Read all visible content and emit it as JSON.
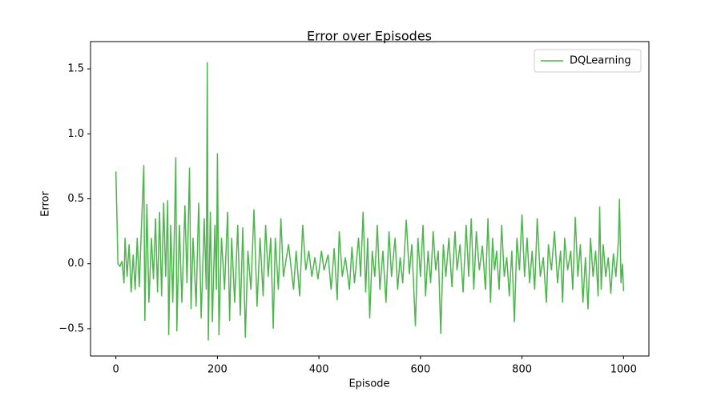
{
  "chart_data": {
    "type": "line",
    "title": "Error over Episodes",
    "xlabel": "Episode",
    "ylabel": "Error",
    "x": [
      0,
      4,
      8,
      12,
      16,
      18,
      22,
      26,
      30,
      34,
      38,
      42,
      46,
      50,
      55,
      57,
      61,
      65,
      70,
      74,
      78,
      82,
      86,
      90,
      94,
      98,
      102,
      104,
      108,
      112,
      116,
      118,
      120,
      125,
      130,
      136,
      140,
      145,
      148,
      152,
      158,
      163,
      168,
      174,
      178,
      180,
      182,
      186,
      190,
      195,
      198,
      200,
      203,
      208,
      214,
      220,
      224,
      228,
      234,
      240,
      245,
      250,
      255,
      260,
      266,
      272,
      278,
      284,
      290,
      295,
      300,
      305,
      310,
      314,
      320,
      325,
      330,
      340,
      350,
      355,
      362,
      368,
      374,
      380,
      386,
      392,
      398,
      405,
      410,
      418,
      424,
      430,
      436,
      440,
      446,
      452,
      460,
      465,
      470,
      478,
      482,
      487,
      492,
      496,
      500,
      505,
      510,
      515,
      520,
      526,
      532,
      538,
      543,
      550,
      555,
      560,
      565,
      572,
      578,
      583,
      590,
      595,
      600,
      605,
      610,
      615,
      620,
      625,
      630,
      635,
      640,
      645,
      650,
      656,
      662,
      668,
      672,
      678,
      684,
      690,
      695,
      700,
      705,
      710,
      716,
      722,
      728,
      733,
      738,
      742,
      746,
      750,
      755,
      760,
      765,
      770,
      775,
      780,
      785,
      790,
      795,
      800,
      805,
      810,
      815,
      820,
      825,
      830,
      836,
      842,
      848,
      852,
      858,
      864,
      870,
      876,
      880,
      884,
      890,
      896,
      900,
      905,
      910,
      915,
      920,
      925,
      930,
      935,
      940,
      945,
      950,
      953,
      956,
      960,
      965,
      970,
      975,
      980,
      985,
      990,
      992,
      995,
      998,
      1000
    ],
    "series": [
      {
        "name": "DQLearning",
        "color": "#4cb54c",
        "values": [
          0.71,
          0.0,
          -0.02,
          0.02,
          -0.15,
          0.2,
          -0.1,
          0.15,
          -0.22,
          0.07,
          -0.2,
          0.2,
          -0.18,
          0.25,
          0.76,
          -0.44,
          0.46,
          -0.3,
          0.2,
          -0.12,
          0.35,
          -0.22,
          0.4,
          -0.25,
          0.47,
          -0.1,
          0.49,
          -0.55,
          0.3,
          -0.3,
          0.4,
          0.82,
          -0.52,
          0.3,
          -0.3,
          0.45,
          -0.15,
          0.74,
          -0.35,
          0.2,
          -0.33,
          0.47,
          -0.42,
          0.35,
          -0.2,
          1.55,
          -0.59,
          0.4,
          -0.45,
          0.3,
          -0.2,
          0.85,
          -0.55,
          0.2,
          -0.2,
          0.4,
          -0.44,
          0.2,
          -0.3,
          0.3,
          -0.4,
          0.28,
          -0.57,
          0.1,
          -0.2,
          0.42,
          -0.33,
          0.2,
          -0.25,
          0.3,
          -0.1,
          0.2,
          -0.5,
          0.2,
          -0.2,
          0.35,
          -0.1,
          0.15,
          -0.2,
          0.1,
          -0.25,
          0.3,
          -0.05,
          0.1,
          -0.1,
          0.05,
          -0.12,
          0.1,
          -0.05,
          0.07,
          -0.2,
          0.12,
          -0.28,
          0.25,
          -0.1,
          0.05,
          -0.2,
          0.13,
          -0.15,
          0.2,
          -0.1,
          0.4,
          -0.22,
          0.2,
          -0.42,
          0.1,
          -0.1,
          0.3,
          -0.2,
          0.1,
          -0.3,
          0.25,
          -0.1,
          0.2,
          -0.2,
          0.05,
          -0.15,
          0.34,
          -0.08,
          0.15,
          -0.48,
          0.2,
          -0.1,
          0.3,
          -0.25,
          0.1,
          -0.15,
          0.25,
          -0.05,
          0.1,
          -0.54,
          0.15,
          -0.1,
          0.2,
          -0.18,
          0.25,
          -0.05,
          0.15,
          -0.22,
          0.3,
          -0.1,
          0.35,
          -0.2,
          0.25,
          -0.05,
          0.14,
          -0.2,
          0.35,
          -0.3,
          0.2,
          -0.05,
          0.1,
          -0.2,
          0.3,
          -0.1,
          0.05,
          -0.25,
          0.1,
          -0.45,
          0.2,
          -0.05,
          0.38,
          -0.1,
          0.2,
          -0.15,
          0.1,
          -0.2,
          0.35,
          -0.1,
          0.05,
          -0.3,
          0.15,
          -0.05,
          0.25,
          -0.15,
          0.1,
          -0.3,
          0.2,
          -0.05,
          0.1,
          -0.2,
          0.36,
          -0.1,
          0.15,
          -0.3,
          0.05,
          -0.35,
          0.2,
          -0.1,
          0.1,
          -0.25,
          0.44,
          -0.2,
          0.15,
          -0.1,
          0.05,
          -0.23,
          0.08,
          -0.1,
          0.18,
          0.5,
          -0.15,
          0.0,
          -0.21
        ]
      }
    ],
    "xlim": [
      -50,
      1050
    ],
    "ylim": [
      -0.71,
      1.71
    ],
    "xticks": [
      0,
      200,
      400,
      600,
      800,
      1000
    ],
    "yticks": [
      {
        "value": -0.5,
        "label": "−0.5"
      },
      {
        "value": 0,
        "label": "0.0"
      },
      0.5,
      {
        "value": 1,
        "label": "1.0"
      },
      1.5
    ],
    "legend": "upper right"
  }
}
